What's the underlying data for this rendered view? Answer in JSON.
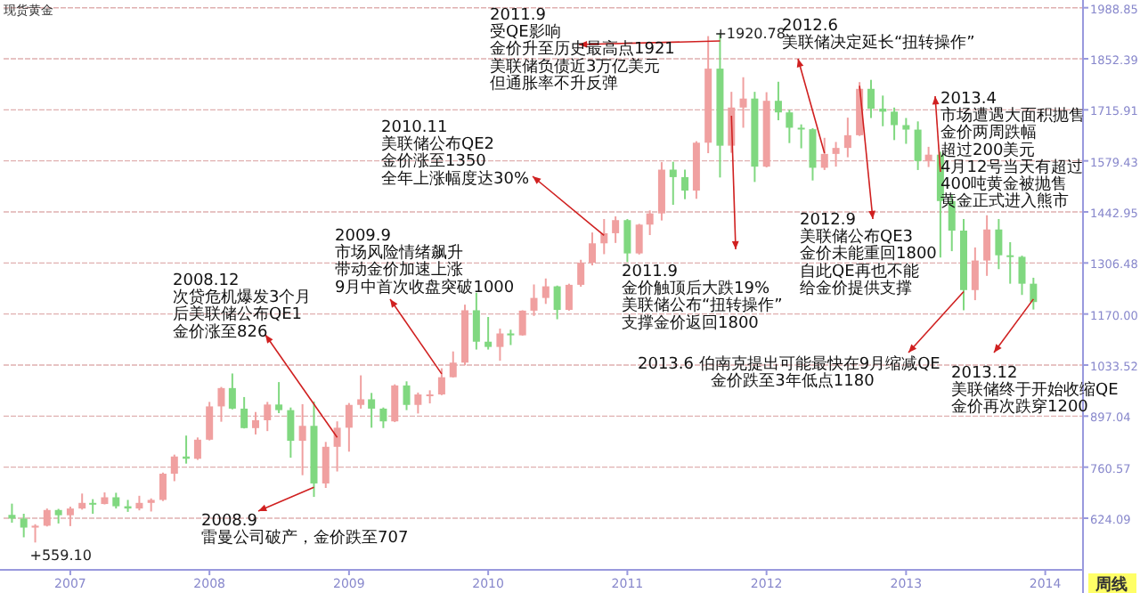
{
  "chart_data": {
    "type": "candlestick",
    "title": "现货黄金",
    "x": [
      "2006-08",
      "2006-09",
      "2006-10",
      "2006-11",
      "2006-12",
      "2007-01",
      "2007-02",
      "2007-03",
      "2007-04",
      "2007-05",
      "2007-06",
      "2007-07",
      "2007-08",
      "2007-09",
      "2007-10",
      "2007-11",
      "2007-12",
      "2008-01",
      "2008-02",
      "2008-03",
      "2008-04",
      "2008-05",
      "2008-06",
      "2008-07",
      "2008-08",
      "2008-09",
      "2008-10",
      "2008-11",
      "2008-12",
      "2009-01",
      "2009-02",
      "2009-03",
      "2009-04",
      "2009-05",
      "2009-06",
      "2009-07",
      "2009-08",
      "2009-09",
      "2009-10",
      "2009-11",
      "2009-12",
      "2010-01",
      "2010-02",
      "2010-03",
      "2010-04",
      "2010-05",
      "2010-06",
      "2010-07",
      "2010-08",
      "2010-09",
      "2010-10",
      "2010-11",
      "2010-12",
      "2011-01",
      "2011-02",
      "2011-03",
      "2011-04",
      "2011-05",
      "2011-06",
      "2011-07",
      "2011-08",
      "2011-09",
      "2011-10",
      "2011-11",
      "2011-12",
      "2012-01",
      "2012-02",
      "2012-03",
      "2012-04",
      "2012-05",
      "2012-06",
      "2012-07",
      "2012-08",
      "2012-09",
      "2012-10",
      "2012-11",
      "2012-12",
      "2013-01",
      "2013-02",
      "2013-03",
      "2013-04",
      "2013-05",
      "2013-06",
      "2013-07",
      "2013-08",
      "2013-09",
      "2013-10",
      "2013-11",
      "2013-12"
    ],
    "ohlc": [
      [
        633,
        663,
        612,
        623
      ],
      [
        623,
        636,
        573,
        599
      ],
      [
        599,
        608,
        559.1,
        604
      ],
      [
        604,
        650,
        602,
        646
      ],
      [
        646,
        649,
        610,
        632
      ],
      [
        632,
        655,
        603,
        650
      ],
      [
        650,
        690,
        647,
        665
      ],
      [
        665,
        675,
        636,
        662
      ],
      [
        662,
        693,
        661,
        680
      ],
      [
        680,
        692,
        650,
        656
      ],
      [
        656,
        673,
        641,
        650
      ],
      [
        650,
        684,
        645,
        665
      ],
      [
        665,
        677,
        642,
        673
      ],
      [
        673,
        746,
        670,
        743
      ],
      [
        743,
        794,
        723,
        789
      ],
      [
        789,
        845,
        770,
        783
      ],
      [
        783,
        840,
        780,
        834
      ],
      [
        834,
        935,
        832,
        923
      ],
      [
        923,
        975,
        882,
        972
      ],
      [
        972,
        1011,
        915,
        917
      ],
      [
        917,
        948,
        864,
        865
      ],
      [
        865,
        908,
        848,
        886
      ],
      [
        886,
        935,
        857,
        928
      ],
      [
        928,
        988,
        905,
        913
      ],
      [
        913,
        920,
        786,
        831
      ],
      [
        831,
        929,
        739,
        871
      ],
      [
        871,
        936,
        681,
        717
      ],
      [
        717,
        828,
        705,
        815
      ],
      [
        815,
        883,
        749,
        866
      ],
      [
        866,
        932,
        802,
        927
      ],
      [
        927,
        1006,
        917,
        942
      ],
      [
        942,
        959,
        866,
        917
      ],
      [
        917,
        920,
        865,
        883
      ],
      [
        883,
        982,
        881,
        979
      ],
      [
        979,
        990,
        913,
        927
      ],
      [
        927,
        960,
        904,
        955
      ],
      [
        955,
        966,
        931,
        955
      ],
      [
        955,
        1025,
        953,
        1001
      ],
      [
        1001,
        1070,
        1000,
        1040
      ],
      [
        1040,
        1195,
        1033,
        1180
      ],
      [
        1180,
        1227,
        1075,
        1096
      ],
      [
        1096,
        1162,
        1075,
        1082
      ],
      [
        1082,
        1131,
        1045,
        1118
      ],
      [
        1118,
        1128,
        1087,
        1113
      ],
      [
        1113,
        1180,
        1112,
        1179
      ],
      [
        1179,
        1249,
        1165,
        1213
      ],
      [
        1213,
        1265,
        1197,
        1244
      ],
      [
        1244,
        1246,
        1156,
        1181
      ],
      [
        1181,
        1251,
        1179,
        1248
      ],
      [
        1248,
        1315,
        1243,
        1307
      ],
      [
        1307,
        1388,
        1300,
        1359
      ],
      [
        1359,
        1424,
        1330,
        1386
      ],
      [
        1386,
        1431,
        1360,
        1421
      ],
      [
        1421,
        1424,
        1309,
        1332
      ],
      [
        1332,
        1411,
        1329,
        1409
      ],
      [
        1409,
        1447,
        1381,
        1439
      ],
      [
        1439,
        1576,
        1420,
        1556
      ],
      [
        1556,
        1577,
        1462,
        1536
      ],
      [
        1536,
        1556,
        1477,
        1500
      ],
      [
        1500,
        1632,
        1478,
        1628
      ],
      [
        1628,
        1913,
        1600,
        1826
      ],
      [
        1826,
        1920.78,
        1535,
        1620
      ],
      [
        1620,
        1764,
        1601,
        1722
      ],
      [
        1722,
        1803,
        1668,
        1746
      ],
      [
        1746,
        1764,
        1523,
        1564
      ],
      [
        1564,
        1763,
        1562,
        1740
      ],
      [
        1740,
        1791,
        1688,
        1709
      ],
      [
        1709,
        1716,
        1627,
        1668
      ],
      [
        1668,
        1677,
        1613,
        1664
      ],
      [
        1664,
        1667,
        1527,
        1561
      ],
      [
        1561,
        1641,
        1555,
        1598
      ],
      [
        1598,
        1630,
        1564,
        1614
      ],
      [
        1614,
        1695,
        1589,
        1648
      ],
      [
        1648,
        1790,
        1646,
        1772
      ],
      [
        1772,
        1796,
        1694,
        1719
      ],
      [
        1719,
        1754,
        1672,
        1711
      ],
      [
        1711,
        1722,
        1635,
        1675
      ],
      [
        1675,
        1694,
        1625,
        1663
      ],
      [
        1663,
        1685,
        1555,
        1579
      ],
      [
        1579,
        1617,
        1563,
        1596
      ],
      [
        1596,
        1604,
        1321,
        1472
      ],
      [
        1472,
        1488,
        1338,
        1393
      ],
      [
        1393,
        1424,
        1180,
        1234
      ],
      [
        1234,
        1348,
        1207,
        1313
      ],
      [
        1313,
        1434,
        1272,
        1396
      ],
      [
        1396,
        1424,
        1290,
        1327
      ],
      [
        1327,
        1362,
        1251,
        1323
      ],
      [
        1323,
        1326,
        1221,
        1251
      ],
      [
        1251,
        1267,
        1182,
        1202
      ]
    ],
    "colors": [
      "#80d880",
      "#80d880",
      "#f0a0a0",
      "#f0a0a0",
      "#80d880",
      "#f0a0a0",
      "#f0a0a0",
      "#80d880",
      "#f0a0a0",
      "#80d880",
      "#80d880",
      "#f0a0a0",
      "#f0a0a0",
      "#f0a0a0",
      "#f0a0a0",
      "#80d880",
      "#f0a0a0",
      "#f0a0a0",
      "#f0a0a0",
      "#80d880",
      "#80d880",
      "#f0a0a0",
      "#f0a0a0",
      "#80d880",
      "#80d880",
      "#f0a0a0",
      "#80d880",
      "#f0a0a0",
      "#f0a0a0",
      "#f0a0a0",
      "#f0a0a0",
      "#80d880",
      "#80d880",
      "#f0a0a0",
      "#80d880",
      "#f0a0a0",
      "#f0a0a0",
      "#f0a0a0",
      "#f0a0a0",
      "#f0a0a0",
      "#80d880",
      "#80d880",
      "#f0a0a0",
      "#80d880",
      "#f0a0a0",
      "#f0a0a0",
      "#f0a0a0",
      "#80d880",
      "#f0a0a0",
      "#f0a0a0",
      "#f0a0a0",
      "#f0a0a0",
      "#f0a0a0",
      "#80d880",
      "#f0a0a0",
      "#f0a0a0",
      "#f0a0a0",
      "#80d880",
      "#80d880",
      "#f0a0a0",
      "#f0a0a0",
      "#80d880",
      "#f0a0a0",
      "#f0a0a0",
      "#80d880",
      "#f0a0a0",
      "#80d880",
      "#80d880",
      "#80d880",
      "#80d880",
      "#f0a0a0",
      "#f0a0a0",
      "#f0a0a0",
      "#f0a0a0",
      "#80d880",
      "#80d880",
      "#80d880",
      "#80d880",
      "#80d880",
      "#f0a0a0",
      "#80d880",
      "#80d880",
      "#80d880",
      "#f0a0a0",
      "#f0a0a0",
      "#80d880",
      "#80d880",
      "#80d880",
      "#80d880"
    ],
    "xlim": [
      "2006-07-10",
      "2014-04-10"
    ],
    "xticks": [
      "2007",
      "2008",
      "2009",
      "2010",
      "2011",
      "2012",
      "2013",
      "2014"
    ],
    "ylim": [
      486,
      2000
    ],
    "yticks": [
      624.09,
      760.57,
      897.04,
      1033.52,
      {
        "value": 1170,
        "label": "1170.00"
      },
      1306.48,
      1442.95,
      1579.43,
      1715.91,
      1852.39,
      1988.85
    ],
    "grid": "y",
    "annotations": [
      {
        "text": "2011.9\n受QE影响金价升至历史最高点1921美联储负债近3万亿美元但通胀率不升反弹",
        "x": "2011-09",
        "y": 1900
      },
      {
        "text": "2012.6\n美联储决定延长“扭转操作”",
        "x": "2012-06",
        "y": 1600
      },
      {
        "text": "2013.4\n市场遭遇大面积抛售金价两周跌幅超过200美元4月12号当天有超过400吨黄金被抛售黄金正式进入熊市",
        "x": "2013-04",
        "y": 1550
      },
      {
        "text": "2010.11\n美联储公布QE2金价涨至1350全年上涨幅度达30%",
        "x": "2010-11",
        "y": 1380
      },
      {
        "text": "2009.9\n市场风险情绪飙升带动金价加速上涨9月中首次收盘突破1000",
        "x": "2009-09",
        "y": 1010
      },
      {
        "text": "2008.12\n次贷危机爆发3个月后美联储公布QE1金价涨至826",
        "x": "2008-12",
        "y": 840
      },
      {
        "text": "2008.9\n雷曼公司破产，金价跌至707",
        "x": "2008-10",
        "y": 707
      },
      {
        "text": "2011.9\n金价触顶后大跌19%美联储公布“扭转操作”支撑金价返回1800",
        "x": "2011-10",
        "y": 1700
      },
      {
        "text": "2012.9\n美联储公布QE3金价未能重回1800自此QE再也不能给金价提供支撑",
        "x": "2012-09",
        "y": 1780
      },
      {
        "text": "2013.6 伯南克提出可能最快在9月缩减QE\n金价跌至3年低点1180",
        "x": "2013-06",
        "y": 1230
      },
      {
        "text": "2013.12\n美联储终于开始收缩QE金价再次跌穿1200",
        "x": "2013-12",
        "y": 1210
      },
      {
        "text": "+1920.78",
        "x": "2011-09",
        "y": 1920.78
      },
      {
        "text": "+559.10",
        "x": "2006-10",
        "y": 559.1
      },
      "周线"
    ]
  }
}
